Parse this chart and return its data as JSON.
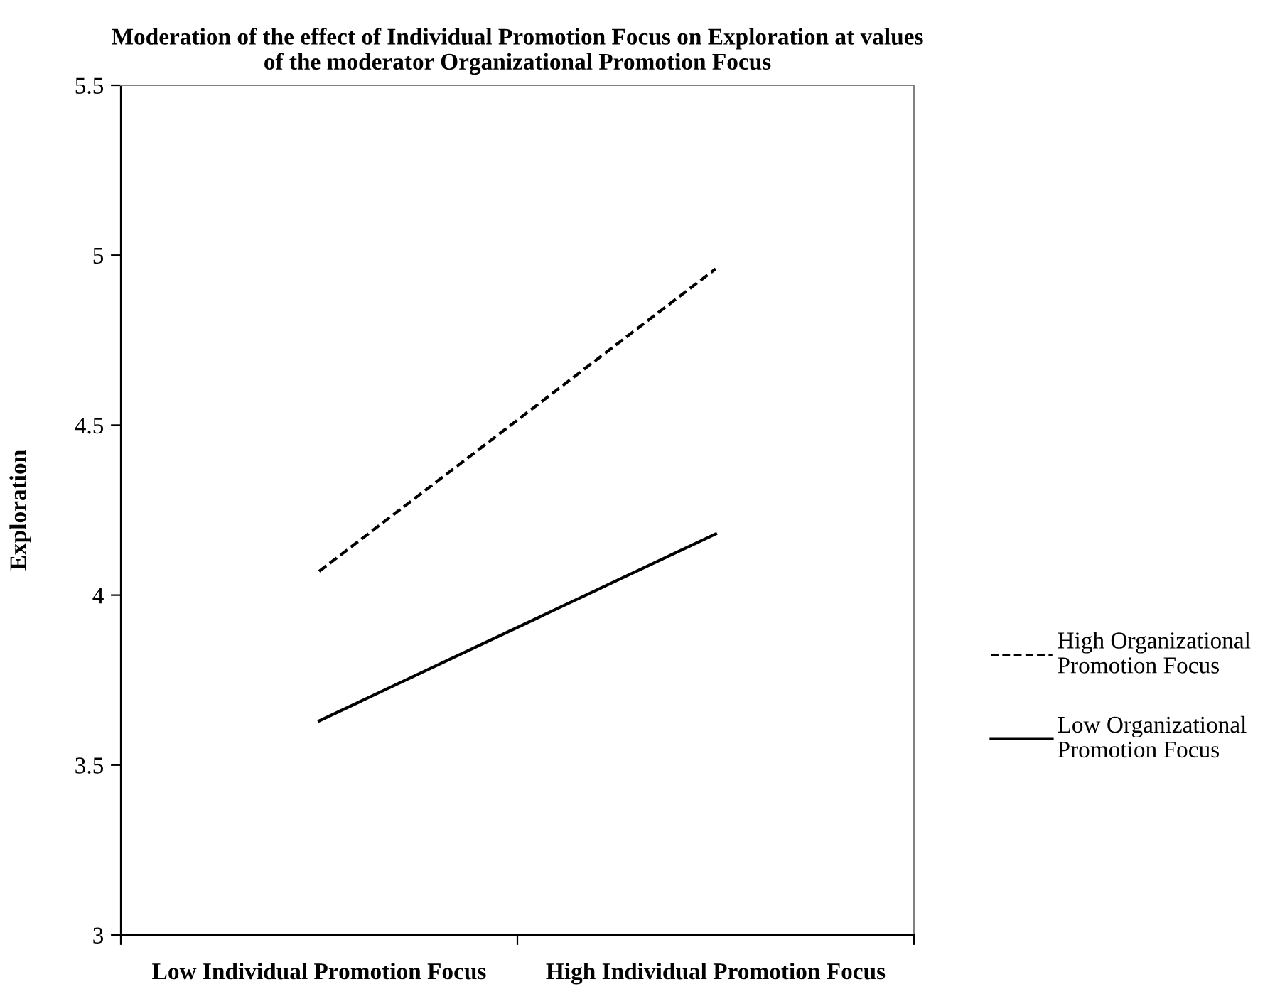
{
  "chart_data": {
    "type": "line",
    "title": "Moderation of the effect of Individual Promotion Focus on Exploration at values\nof the moderator Organizational Promotion Focus",
    "ylabel": "Exploration",
    "categories": [
      "Low Individual Promotion Focus",
      "High Individual Promotion Focus"
    ],
    "series": [
      {
        "name": "High Organizational\nPromotion Focus",
        "color": "#000000",
        "line_style": "dashed",
        "values": [
          4.07,
          4.96
        ]
      },
      {
        "name": "Low Organizational\nPromotion Focus",
        "color": "#000000",
        "line_style": "solid",
        "values": [
          3.63,
          4.18
        ]
      }
    ],
    "ylim": [
      3,
      5.5
    ],
    "yticks": [
      3,
      3.5,
      4,
      4.5,
      5,
      5.5
    ],
    "grid": false,
    "legend": "right",
    "marker": "none"
  }
}
